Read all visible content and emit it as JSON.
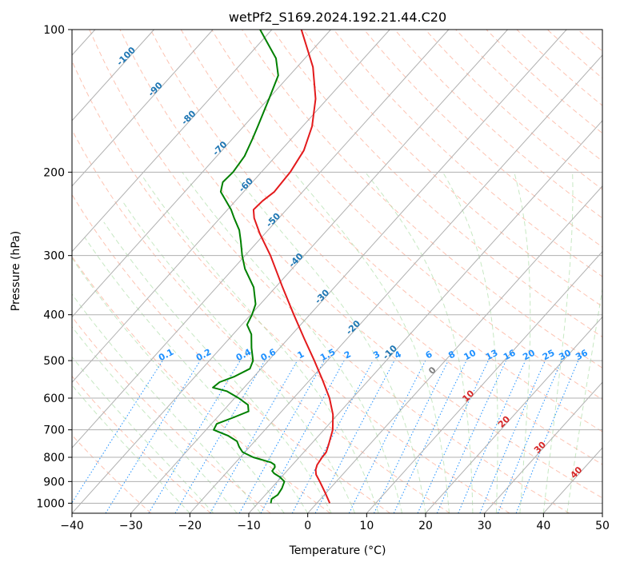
{
  "chart_data": {
    "type": "line",
    "chart_kind": "Skew-T log-P diagram",
    "title": "wetPf2_S169.2024.192.21.44.C20",
    "xlabel": "Temperature (°C)",
    "ylabel": "Pressure (hPa)",
    "xlim": [
      -40,
      50
    ],
    "ylim": [
      1050,
      100
    ],
    "y_scale": "log",
    "x_ticks": [
      "−40",
      "−30",
      "−20",
      "−10",
      "0",
      "10",
      "20",
      "30",
      "40",
      "50"
    ],
    "y_ticks": [
      "100",
      "200",
      "300",
      "400",
      "500",
      "600",
      "700",
      "800",
      "900",
      "1000"
    ],
    "grid": true,
    "series": [
      {
        "color": "#e31a1c",
        "style": "solid",
        "points": [
          {
            "p": 1000,
            "t": 2.2
          },
          {
            "p": 950,
            "t": -0.2
          },
          {
            "p": 900,
            "t": -2.8
          },
          {
            "p": 870,
            "t": -4.5
          },
          {
            "p": 850,
            "t": -5.3
          },
          {
            "p": 830,
            "t": -5.8
          },
          {
            "p": 800,
            "t": -6.1
          },
          {
            "p": 780,
            "t": -6.2
          },
          {
            "p": 750,
            "t": -7.0
          },
          {
            "p": 700,
            "t": -8.5
          },
          {
            "p": 650,
            "t": -10.8
          },
          {
            "p": 600,
            "t": -13.9
          },
          {
            "p": 550,
            "t": -17.8
          },
          {
            "p": 500,
            "t": -22.2
          },
          {
            "p": 450,
            "t": -27.2
          },
          {
            "p": 400,
            "t": -32.7
          },
          {
            "p": 350,
            "t": -38.8
          },
          {
            "p": 300,
            "t": -45.7
          },
          {
            "p": 270,
            "t": -50.8
          },
          {
            "p": 250,
            "t": -54.2
          },
          {
            "p": 240,
            "t": -55.6
          },
          {
            "p": 230,
            "t": -55.4
          },
          {
            "p": 220,
            "t": -54.8
          },
          {
            "p": 200,
            "t": -55.1
          },
          {
            "p": 180,
            "t": -56.1
          },
          {
            "p": 160,
            "t": -58.4
          },
          {
            "p": 140,
            "t": -62.0
          },
          {
            "p": 120,
            "t": -67.3
          },
          {
            "p": 100,
            "t": -75.0
          }
        ]
      },
      {
        "color": "#008000",
        "style": "solid",
        "points": [
          {
            "p": 1000,
            "t": -7.8
          },
          {
            "p": 980,
            "t": -8.3
          },
          {
            "p": 960,
            "t": -7.9
          },
          {
            "p": 930,
            "t": -8.2
          },
          {
            "p": 900,
            "t": -8.8
          },
          {
            "p": 880,
            "t": -10.3
          },
          {
            "p": 865,
            "t": -11.8
          },
          {
            "p": 855,
            "t": -12.5
          },
          {
            "p": 840,
            "t": -12.6
          },
          {
            "p": 830,
            "t": -13.0
          },
          {
            "p": 820,
            "t": -14.0
          },
          {
            "p": 800,
            "t": -17.8
          },
          {
            "p": 780,
            "t": -20.4
          },
          {
            "p": 760,
            "t": -21.8
          },
          {
            "p": 740,
            "t": -23.0
          },
          {
            "p": 720,
            "t": -25.4
          },
          {
            "p": 700,
            "t": -28.7
          },
          {
            "p": 680,
            "t": -29.1
          },
          {
            "p": 660,
            "t": -27.3
          },
          {
            "p": 640,
            "t": -25.6
          },
          {
            "p": 620,
            "t": -26.7
          },
          {
            "p": 600,
            "t": -29.3
          },
          {
            "p": 580,
            "t": -32.4
          },
          {
            "p": 570,
            "t": -35.3
          },
          {
            "p": 555,
            "t": -35.0
          },
          {
            "p": 540,
            "t": -33.3
          },
          {
            "p": 520,
            "t": -31.9
          },
          {
            "p": 500,
            "t": -32.6
          },
          {
            "p": 470,
            "t": -34.8
          },
          {
            "p": 440,
            "t": -36.9
          },
          {
            "p": 420,
            "t": -39.1
          },
          {
            "p": 400,
            "t": -39.8
          },
          {
            "p": 380,
            "t": -40.8
          },
          {
            "p": 350,
            "t": -43.7
          },
          {
            "p": 320,
            "t": -48.0
          },
          {
            "p": 300,
            "t": -50.5
          },
          {
            "p": 280,
            "t": -52.9
          },
          {
            "p": 265,
            "t": -54.9
          },
          {
            "p": 250,
            "t": -57.6
          },
          {
            "p": 240,
            "t": -59.4
          },
          {
            "p": 230,
            "t": -61.6
          },
          {
            "p": 220,
            "t": -63.9
          },
          {
            "p": 210,
            "t": -65.0
          },
          {
            "p": 200,
            "t": -64.8
          },
          {
            "p": 185,
            "t": -65.3
          },
          {
            "p": 170,
            "t": -66.6
          },
          {
            "p": 160,
            "t": -67.6
          },
          {
            "p": 140,
            "t": -69.9
          },
          {
            "p": 125,
            "t": -71.9
          },
          {
            "p": 115,
            "t": -74.9
          },
          {
            "p": 100,
            "t": -82.0
          }
        ]
      }
    ],
    "reference_lines": {
      "isotherms": {
        "color": "#808080",
        "labels": []
      },
      "dry_adiabats": {
        "color": "#fc9272",
        "style": "dashed",
        "labels": []
      },
      "moist_adiabats": {
        "color": "#a1d99b",
        "style": "dashed",
        "labels": []
      },
      "mixing_ratio": {
        "color": "#1e90ff",
        "style": "dotted",
        "pressure_top": 500,
        "labels": [
          "0.1",
          "0.2",
          "0.4",
          "0.6",
          "1",
          "1.5",
          "2",
          "3",
          "4",
          "6",
          "8",
          "10",
          "13",
          "16",
          "20",
          "25",
          "30",
          "36"
        ]
      },
      "isotherm_labels_upper": {
        "color": "#1f77b4",
        "labels": [
          "-100",
          "-90",
          "-80",
          "-70",
          "-60",
          "-50",
          "-40",
          "-30",
          "-20",
          "-10"
        ]
      },
      "isotherm_labels_lower": {
        "color": "#d62728",
        "labels": [
          "0",
          "10",
          "20",
          "30",
          "40"
        ]
      }
    }
  }
}
